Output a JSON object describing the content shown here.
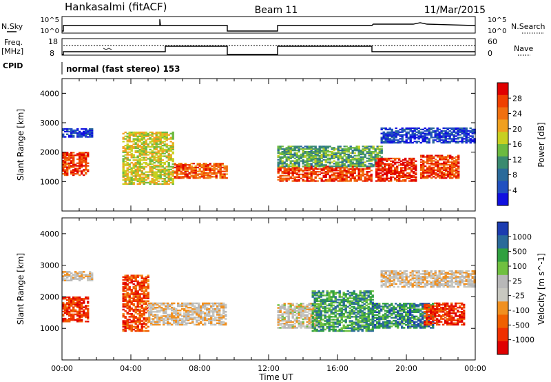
{
  "header": {
    "station": "Hankasalmi (fitACF)",
    "beam": "Beam 11",
    "date": "11/Mar/2015"
  },
  "panel_labels": {
    "nsky": "N.Sky",
    "nsearch": "N.Search",
    "freq": "Freq.",
    "freq_unit": "[MHz]",
    "nave": "Nave",
    "cpid": "CPID",
    "cpid_text": "normal (fast stereo) 153",
    "nsky_ticks": [
      "10^5",
      "10^0"
    ],
    "nsearch_ticks": [
      "10^5",
      "10^0"
    ],
    "freq_ticks": [
      "18",
      "8"
    ],
    "nave_ticks": [
      "60",
      "0"
    ]
  },
  "colors": {
    "power_scale": [
      "#1010e0",
      "#2050c0",
      "#2a6a9a",
      "#3a8a70",
      "#6cba40",
      "#c8d020",
      "#f0a020",
      "#f07010",
      "#f04000",
      "#e00000"
    ],
    "velocity_scale": [
      "#e00000",
      "#f03000",
      "#f06000",
      "#f09020",
      "#c8c8c0",
      "#b8b8b8",
      "#70c040",
      "#30a040",
      "#2a6a9a",
      "#1c3cb0"
    ],
    "frame": "#000000"
  },
  "chart_data": [
    {
      "type": "heatmap",
      "title": "Power",
      "ylabel": "Slant Range [km]",
      "xlabel": "Time UT",
      "x_range_hours": [
        0,
        24
      ],
      "ylim": [
        0,
        4500
      ],
      "y_ticks": [
        1000,
        2000,
        3000,
        4000
      ],
      "x_tick_labels": [
        "00:00",
        "04:00",
        "08:00",
        "12:00",
        "16:00",
        "20:00",
        "00:00"
      ],
      "colorbar_label": "Power [dB]",
      "colorbar_ticks": [
        "4",
        "8",
        "12",
        "16",
        "20",
        "24",
        "28"
      ],
      "data_gap_hours": [
        9.5,
        12.5
      ],
      "regions": [
        {
          "t0": 0.0,
          "t1": 1.5,
          "r0": 1200,
          "r1": 2000,
          "level": 0.85
        },
        {
          "t0": 0.0,
          "t1": 1.8,
          "r0": 2500,
          "r1": 2800,
          "level": 0.1
        },
        {
          "t0": 3.5,
          "t1": 6.5,
          "r0": 900,
          "r1": 2700,
          "level": 0.55
        },
        {
          "t0": 6.5,
          "t1": 9.5,
          "r0": 1100,
          "r1": 1600,
          "level": 0.8
        },
        {
          "t0": 12.5,
          "t1": 18.0,
          "r0": 1000,
          "r1": 1500,
          "level": 0.85
        },
        {
          "t0": 12.5,
          "t1": 18.5,
          "r0": 1500,
          "r1": 2200,
          "level": 0.4
        },
        {
          "t0": 18.2,
          "t1": 20.5,
          "r0": 1000,
          "r1": 1800,
          "level": 0.9
        },
        {
          "t0": 20.8,
          "t1": 23.0,
          "r0": 1100,
          "r1": 1900,
          "level": 0.85
        },
        {
          "t0": 18.5,
          "t1": 24.0,
          "r0": 2300,
          "r1": 2800,
          "level": 0.12
        }
      ]
    },
    {
      "type": "heatmap",
      "title": "Velocity",
      "ylabel": "Slant Range [km]",
      "xlabel": "Time UT",
      "x_range_hours": [
        0,
        24
      ],
      "ylim": [
        0,
        4500
      ],
      "y_ticks": [
        1000,
        2000,
        3000,
        4000
      ],
      "x_tick_labels": [
        "00:00",
        "04:00",
        "08:00",
        "12:00",
        "16:00",
        "20:00",
        "00:00"
      ],
      "colorbar_label": "Velocity [m s^-1]",
      "colorbar_ticks": [
        "1000",
        "500",
        "100",
        "25",
        "-25",
        "-100",
        "-500",
        "-1000"
      ],
      "data_gap_hours": [
        9.5,
        12.5
      ],
      "regions": [
        {
          "t0": 0.0,
          "t1": 1.5,
          "r0": 1200,
          "r1": 2000,
          "level": 0.15
        },
        {
          "t0": 0.0,
          "t1": 1.8,
          "r0": 2500,
          "r1": 2800,
          "level": 0.45
        },
        {
          "t0": 3.5,
          "t1": 5.0,
          "r0": 900,
          "r1": 2700,
          "level": 0.2
        },
        {
          "t0": 5.0,
          "t1": 9.5,
          "r0": 1100,
          "r1": 1800,
          "level": 0.45
        },
        {
          "t0": 12.5,
          "t1": 15.0,
          "r0": 1000,
          "r1": 1800,
          "level": 0.48
        },
        {
          "t0": 14.5,
          "t1": 18.0,
          "r0": 900,
          "r1": 2200,
          "level": 0.75
        },
        {
          "t0": 18.0,
          "t1": 21.5,
          "r0": 1000,
          "r1": 1800,
          "level": 0.8
        },
        {
          "t0": 21.0,
          "t1": 23.3,
          "r0": 1100,
          "r1": 1800,
          "level": 0.15
        },
        {
          "t0": 18.5,
          "t1": 24.0,
          "r0": 2300,
          "r1": 2800,
          "level": 0.45
        }
      ]
    }
  ]
}
